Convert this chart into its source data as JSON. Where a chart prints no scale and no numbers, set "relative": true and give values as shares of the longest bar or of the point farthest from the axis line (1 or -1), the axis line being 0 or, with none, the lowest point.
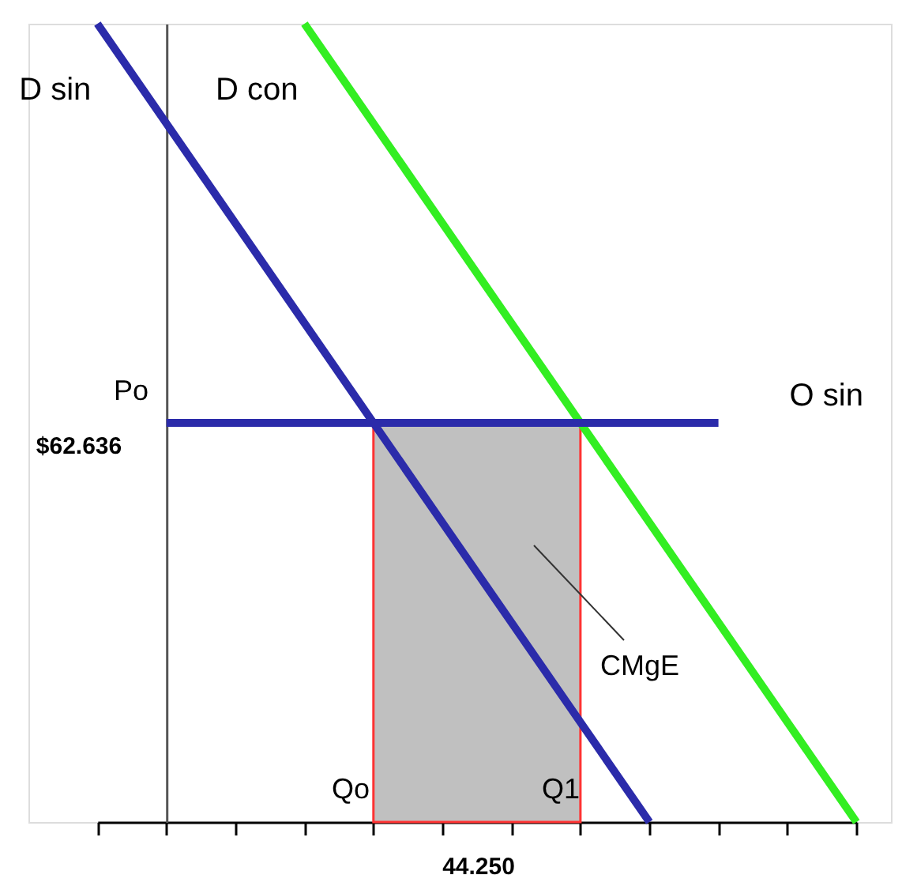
{
  "chart_data": {
    "type": "line",
    "relative": true,
    "grid": false,
    "line_style": "solid",
    "categories": [
      null,
      null,
      null,
      null,
      null,
      null,
      null,
      null,
      null,
      null,
      null,
      null
    ],
    "series": [
      {
        "type": "area",
        "color": "#c0c0c0",
        "values": [
          null,
          null,
          null,
          null,
          0.5,
          0.5,
          0.5,
          0.5,
          null,
          null,
          null,
          null
        ]
      },
      {
        "name": "D sin",
        "color": "#2b2baa",
        "values": [
          1,
          0.875,
          0.75,
          0.625,
          0.5,
          0.375,
          0.25,
          0.125,
          0,
          null,
          null,
          null
        ]
      },
      {
        "name": "D con",
        "color": "#33ee22",
        "values": [
          null,
          null,
          null,
          1,
          0.875,
          0.75,
          0.625,
          0.5,
          0.375,
          0.25,
          0.125,
          0
        ]
      },
      {
        "name": "O sin",
        "color": "#2b2baa",
        "values": [
          null,
          0.5,
          0.5,
          0.5,
          0.5,
          0.5,
          0.5,
          0.5,
          0.5,
          0.5,
          null,
          null
        ]
      }
    ],
    "annotations": [
      "Po",
      "$62.636",
      "Qo",
      "Q1",
      "44.250",
      "CMgE"
    ]
  }
}
